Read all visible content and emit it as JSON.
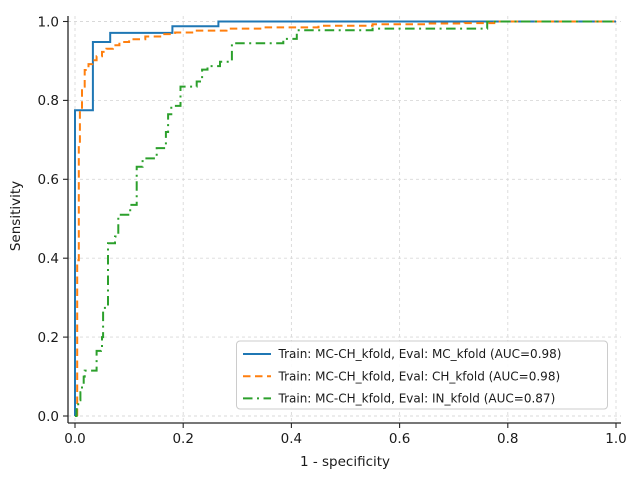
{
  "figure": {
    "background_color": "#ffffff",
    "title": ""
  },
  "chart_data": {
    "type": "line",
    "subtype": "roc-step-curves",
    "title": "",
    "xlabel": "1 - specificity",
    "ylabel": "Sensitivity",
    "xlim": [
      0.0,
      1.0
    ],
    "ylim": [
      0.0,
      1.0
    ],
    "xticks": [
      "0.0",
      "0.2",
      "0.4",
      "0.6",
      "0.8",
      "1.0"
    ],
    "yticks": [
      "0.0",
      "0.2",
      "0.4",
      "0.6",
      "0.8",
      "1.0"
    ],
    "grid": true,
    "grid_style": "dashed",
    "grid_color": "#d9d9d9",
    "spine_color": "#262626",
    "legend_position": "lower right",
    "series": [
      {
        "name": "Train: MC-CH_kfold, Eval: MC_kfold (AUC=0.98)",
        "train": "MC-CH_kfold",
        "eval": "MC_kfold",
        "auc": 0.98,
        "color": "#1f77b4",
        "line_style": "solid",
        "points": [
          [
            0,
            0
          ],
          [
            0,
            0.775
          ],
          [
            0.033,
            0.775
          ],
          [
            0.033,
            0.948
          ],
          [
            0.065,
            0.948
          ],
          [
            0.065,
            0.971
          ],
          [
            0.18,
            0.971
          ],
          [
            0.18,
            0.988
          ],
          [
            0.265,
            0.988
          ],
          [
            0.265,
            1.0
          ],
          [
            1.0,
            1.0
          ]
        ]
      },
      {
        "name": "Train: MC-CH_kfold, Eval: CH_kfold (AUC=0.98)",
        "train": "MC-CH_kfold",
        "eval": "CH_kfold",
        "auc": 0.98,
        "color": "#ff7f0e",
        "line_style": "dashed",
        "points": [
          [
            0.004,
            0
          ],
          [
            0.004,
            0.395
          ],
          [
            0.007,
            0.395
          ],
          [
            0.007,
            0.69
          ],
          [
            0.009,
            0.72
          ],
          [
            0.009,
            0.775
          ],
          [
            0.013,
            0.805
          ],
          [
            0.013,
            0.835
          ],
          [
            0.018,
            0.858
          ],
          [
            0.018,
            0.877
          ],
          [
            0.025,
            0.892
          ],
          [
            0.032,
            0.902
          ],
          [
            0.04,
            0.912
          ],
          [
            0.05,
            0.923
          ],
          [
            0.058,
            0.931
          ],
          [
            0.07,
            0.94
          ],
          [
            0.082,
            0.948
          ],
          [
            0.1,
            0.955
          ],
          [
            0.13,
            0.962
          ],
          [
            0.16,
            0.968
          ],
          [
            0.185,
            0.972
          ],
          [
            0.22,
            0.977
          ],
          [
            0.28,
            0.982
          ],
          [
            0.35,
            0.985
          ],
          [
            0.45,
            0.989
          ],
          [
            0.55,
            0.993
          ],
          [
            0.65,
            0.995
          ],
          [
            0.72,
            0.996
          ],
          [
            0.775,
            1.0
          ],
          [
            1.0,
            1.0
          ]
        ]
      },
      {
        "name": "Train: MC-CH_kfold, Eval: IN_kfold (AUC=0.87)",
        "train": "MC-CH_kfold",
        "eval": "IN_kfold",
        "auc": 0.87,
        "color": "#2ca02c",
        "line_style": "dashdot",
        "points": [
          [
            0,
            0
          ],
          [
            0.003,
            0.02
          ],
          [
            0.006,
            0.04
          ],
          [
            0.01,
            0.06
          ],
          [
            0.013,
            0.08
          ],
          [
            0.016,
            0.1
          ],
          [
            0.018,
            0.115
          ],
          [
            0.04,
            0.115
          ],
          [
            0.04,
            0.165
          ],
          [
            0.048,
            0.172
          ],
          [
            0.05,
            0.2
          ],
          [
            0.052,
            0.274
          ],
          [
            0.061,
            0.274
          ],
          [
            0.061,
            0.438
          ],
          [
            0.074,
            0.438
          ],
          [
            0.074,
            0.455
          ],
          [
            0.08,
            0.49
          ],
          [
            0.08,
            0.51
          ],
          [
            0.102,
            0.51
          ],
          [
            0.102,
            0.535
          ],
          [
            0.114,
            0.535
          ],
          [
            0.114,
            0.632
          ],
          [
            0.125,
            0.632
          ],
          [
            0.125,
            0.653
          ],
          [
            0.151,
            0.653
          ],
          [
            0.151,
            0.679
          ],
          [
            0.163,
            0.679
          ],
          [
            0.168,
            0.72
          ],
          [
            0.172,
            0.765
          ],
          [
            0.178,
            0.786
          ],
          [
            0.195,
            0.835
          ],
          [
            0.225,
            0.848
          ],
          [
            0.235,
            0.878
          ],
          [
            0.245,
            0.887
          ],
          [
            0.268,
            0.898
          ],
          [
            0.29,
            0.945
          ],
          [
            0.385,
            0.956
          ],
          [
            0.41,
            0.978
          ],
          [
            0.55,
            0.982
          ],
          [
            0.762,
            0.982
          ],
          [
            0.762,
            1.0
          ],
          [
            1.0,
            1.0
          ]
        ]
      }
    ]
  },
  "legend": {
    "entries": [
      "Train: MC-CH_kfold, Eval: MC_kfold (AUC=0.98)",
      "Train: MC-CH_kfold, Eval: CH_kfold (AUC=0.98)",
      "Train: MC-CH_kfold, Eval: IN_kfold (AUC=0.87)"
    ]
  }
}
